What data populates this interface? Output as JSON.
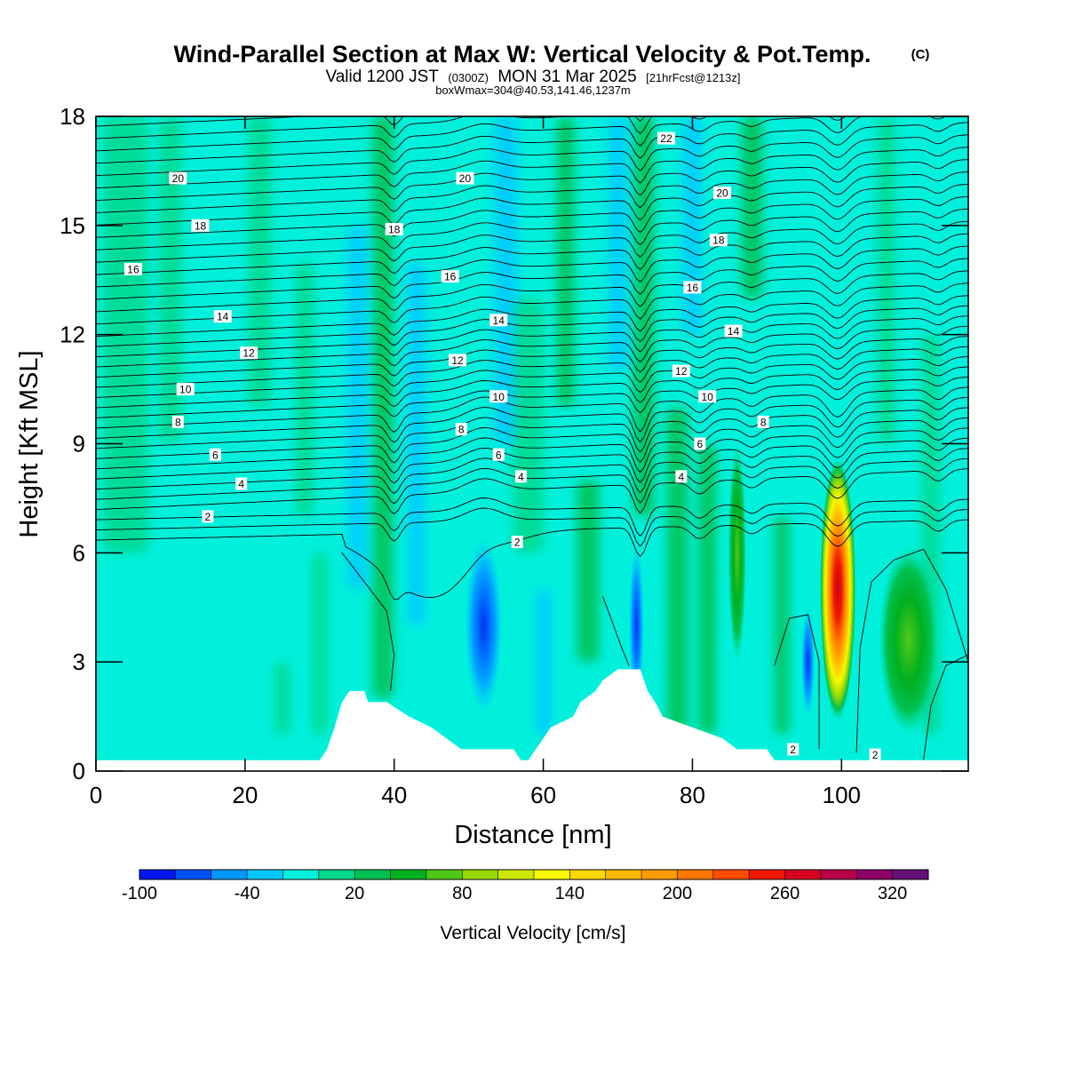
{
  "chart_data": {
    "type": "heatmap",
    "title": "Wind-Parallel Section at Max W: Vertical Velocity & Pot.Temp.",
    "title_mark": "(C)",
    "subtitle": {
      "prefix": "Valid 1200 JST",
      "utc": "(0300Z)",
      "date": "MON 31 Mar 2025",
      "fcst": "[21hrFcst@1213z]"
    },
    "info": "boxWmax=304@40.53,141.46,1237m",
    "xlabel": "Distance [nm]",
    "ylabel": "Height [Kft MSL]",
    "xlim": [
      0,
      117
    ],
    "ylim": [
      0,
      18
    ],
    "x_ticks": [
      0,
      20,
      40,
      60,
      80,
      100
    ],
    "y_ticks": [
      0,
      3,
      6,
      9,
      12,
      15,
      18
    ],
    "colorbar": {
      "label": "Vertical Velocity [cm/s]",
      "levels": [
        -100,
        -80,
        -60,
        -40,
        -20,
        0,
        20,
        40,
        60,
        80,
        100,
        120,
        140,
        160,
        180,
        200,
        220,
        240,
        260,
        280,
        300,
        320,
        340
      ],
      "tick_labels": [
        "-100",
        "-40",
        "20",
        "80",
        "140",
        "200",
        "260",
        "320"
      ],
      "colors": [
        "#0018f0",
        "#0050f8",
        "#0098ff",
        "#00c8ff",
        "#00f0dc",
        "#00d88c",
        "#00c050",
        "#00b020",
        "#50c818",
        "#98d800",
        "#d0e800",
        "#f8f800",
        "#ffd800",
        "#ffb800",
        "#ff9c00",
        "#ff7800",
        "#ff4c00",
        "#f01800",
        "#d80020",
        "#b80048",
        "#8c0068",
        "#641078"
      ]
    },
    "terrain": [
      [
        0,
        0.3
      ],
      [
        30,
        0.3
      ],
      [
        31,
        0.6
      ],
      [
        32,
        1.2
      ],
      [
        33,
        1.9
      ],
      [
        34,
        2.2
      ],
      [
        36,
        2.2
      ],
      [
        36.5,
        1.9
      ],
      [
        39,
        1.9
      ],
      [
        42,
        1.5
      ],
      [
        45,
        1.2
      ],
      [
        47,
        0.9
      ],
      [
        49,
        0.6
      ],
      [
        56,
        0.6
      ],
      [
        57,
        0.3
      ],
      [
        58,
        0.3
      ],
      [
        59,
        0.6
      ],
      [
        60,
        0.9
      ],
      [
        61,
        1.2
      ],
      [
        64,
        1.5
      ],
      [
        65,
        1.9
      ],
      [
        67,
        2.2
      ],
      [
        68,
        2.5
      ],
      [
        70,
        2.8
      ],
      [
        73,
        2.8
      ],
      [
        74,
        2.2
      ],
      [
        75,
        1.9
      ],
      [
        76,
        1.5
      ],
      [
        80,
        1.2
      ],
      [
        84,
        0.9
      ],
      [
        86,
        0.6
      ],
      [
        90,
        0.6
      ],
      [
        91,
        0.3
      ],
      [
        117,
        0.3
      ]
    ],
    "w_features": [
      {
        "name": "strong-updraft-core",
        "x": 99.5,
        "y": 5.0,
        "rx": 2.4,
        "ry": 3.6,
        "value": 304
      },
      {
        "name": "downdraft-west-ridge",
        "x": 52,
        "y": 4.0,
        "rx": 2.5,
        "ry": 2.4,
        "value": -70
      },
      {
        "name": "downdraft-lee-ridge",
        "x": 72.5,
        "y": 4.0,
        "rx": 1.0,
        "ry": 2.2,
        "value": -90
      },
      {
        "name": "downdraft-flank-west",
        "x": 95.5,
        "y": 3.0,
        "rx": 0.9,
        "ry": 1.5,
        "value": -60
      },
      {
        "name": "updraft-east",
        "x": 109,
        "y": 3.6,
        "rx": 4.0,
        "ry": 2.6,
        "value": 55
      },
      {
        "name": "updraft-band-86",
        "x": 86,
        "y": 6.0,
        "rx": 1.2,
        "ry": 3.0,
        "value": 40
      }
    ],
    "theta_contour_labels": [
      {
        "text": "20",
        "x": 11,
        "y": 16.3
      },
      {
        "text": "18",
        "x": 14,
        "y": 15.0
      },
      {
        "text": "16",
        "x": 5,
        "y": 13.8
      },
      {
        "text": "14",
        "x": 17,
        "y": 12.5
      },
      {
        "text": "12",
        "x": 20.5,
        "y": 11.5
      },
      {
        "text": "10",
        "x": 12,
        "y": 10.5
      },
      {
        "text": "8",
        "x": 11,
        "y": 9.6
      },
      {
        "text": "6",
        "x": 16,
        "y": 8.7
      },
      {
        "text": "4",
        "x": 19.5,
        "y": 7.9
      },
      {
        "text": "2",
        "x": 15,
        "y": 7.0
      },
      {
        "text": "20",
        "x": 49.5,
        "y": 16.3
      },
      {
        "text": "18",
        "x": 40,
        "y": 14.9
      },
      {
        "text": "16",
        "x": 47.5,
        "y": 13.6
      },
      {
        "text": "14",
        "x": 54,
        "y": 12.4
      },
      {
        "text": "12",
        "x": 48.5,
        "y": 11.3
      },
      {
        "text": "10",
        "x": 54,
        "y": 10.3
      },
      {
        "text": "8",
        "x": 49,
        "y": 9.4
      },
      {
        "text": "6",
        "x": 54,
        "y": 8.7
      },
      {
        "text": "4",
        "x": 57,
        "y": 8.1
      },
      {
        "text": "2",
        "x": 56.5,
        "y": 6.3
      },
      {
        "text": "22",
        "x": 76.5,
        "y": 17.4
      },
      {
        "text": "20",
        "x": 84,
        "y": 15.9
      },
      {
        "text": "18",
        "x": 83.5,
        "y": 14.6
      },
      {
        "text": "16",
        "x": 80,
        "y": 13.3
      },
      {
        "text": "14",
        "x": 85.5,
        "y": 12.1
      },
      {
        "text": "12",
        "x": 78.5,
        "y": 11.0
      },
      {
        "text": "10",
        "x": 82,
        "y": 10.3
      },
      {
        "text": "8",
        "x": 89.5,
        "y": 9.6
      },
      {
        "text": "6",
        "x": 81,
        "y": 9.0
      },
      {
        "text": "4",
        "x": 78.5,
        "y": 8.1
      },
      {
        "text": "2",
        "x": 93.5,
        "y": 0.6
      },
      {
        "text": "2",
        "x": 104.5,
        "y": 0.45
      }
    ]
  }
}
